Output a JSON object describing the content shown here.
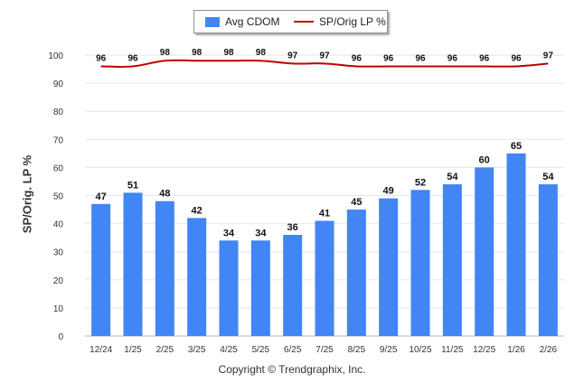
{
  "legend": {
    "bar_label": "Avg CDOM",
    "line_label": "SP/Orig LP %"
  },
  "colors": {
    "bar": "#4285f4",
    "line": "#c00000",
    "grid": "#e6e6e6"
  },
  "ylabel": "SP/Orig. LP %",
  "copyright": "Copyright © Trendgraphix, Inc.",
  "chart_data": {
    "type": "bar",
    "categories": [
      "12/24",
      "1/25",
      "2/25",
      "3/25",
      "4/25",
      "5/25",
      "6/25",
      "7/25",
      "8/25",
      "9/25",
      "10/25",
      "11/25",
      "12/25",
      "1/26",
      "2/26"
    ],
    "series": [
      {
        "name": "Avg CDOM",
        "type": "bar",
        "values": [
          47,
          51,
          48,
          42,
          34,
          34,
          36,
          41,
          45,
          49,
          52,
          54,
          60,
          65,
          54
        ]
      },
      {
        "name": "SP/Orig LP %",
        "type": "line",
        "values": [
          96,
          96,
          98,
          98,
          98,
          98,
          97,
          97,
          96,
          96,
          96,
          96,
          96,
          96,
          97
        ]
      }
    ],
    "yticks": [
      0,
      10,
      20,
      30,
      40,
      50,
      60,
      70,
      80,
      90,
      100
    ],
    "ylim": [
      0,
      100
    ],
    "ylabel": "SP/Orig. LP %",
    "legend_position": "top-center",
    "grid": true
  }
}
